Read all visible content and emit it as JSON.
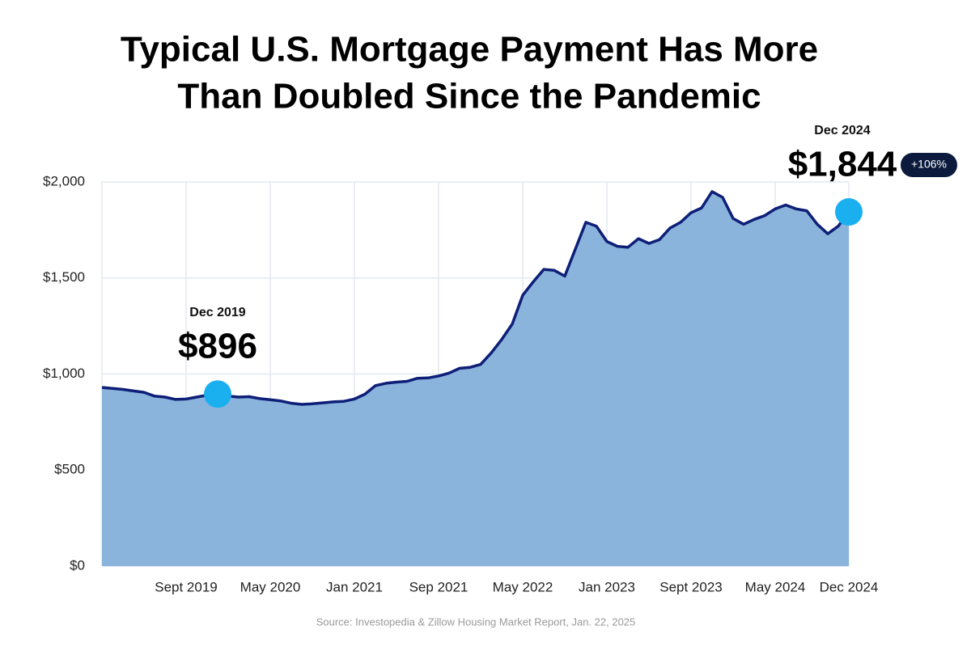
{
  "chart_data": {
    "type": "area",
    "title": "Typical U.S. Mortgage Payment Has More",
    "subtitle": "Than Doubled Since the Pandemic",
    "source": "Source: Investopedia & Zillow Housing Market Report, Jan. 22, 2025",
    "categories": [
      null,
      null,
      null,
      null,
      null,
      null,
      null,
      null,
      "Sept 2019",
      null,
      null,
      null,
      null,
      null,
      null,
      null,
      "May 2020",
      null,
      null,
      null,
      null,
      null,
      null,
      null,
      "Jan 2021",
      null,
      null,
      null,
      null,
      null,
      null,
      null,
      "Sep 2021",
      null,
      null,
      null,
      null,
      null,
      null,
      null,
      "May 2022",
      null,
      null,
      null,
      null,
      null,
      null,
      null,
      "Jan 2023",
      null,
      null,
      null,
      null,
      null,
      null,
      null,
      "Sept 2023",
      null,
      null,
      null,
      null,
      null,
      null,
      null,
      "May 2024",
      null,
      null,
      null,
      null,
      null,
      null,
      "Dec 2024"
    ],
    "series": [
      {
        "color": "#0e1f78",
        "fill": "#8ab4dc",
        "marker_color": "#1ab0f0",
        "values": [
          930,
          925,
          920,
          912,
          905,
          885,
          880,
          868,
          870,
          880,
          890,
          896,
          885,
          880,
          882,
          872,
          866,
          860,
          848,
          842,
          845,
          850,
          855,
          858,
          870,
          895,
          940,
          952,
          958,
          962,
          978,
          980,
          990,
          1005,
          1030,
          1035,
          1050,
          1110,
          1180,
          1260,
          1410,
          1480,
          1545,
          1540,
          1510,
          1650,
          1790,
          1770,
          1690,
          1665,
          1660,
          1705,
          1680,
          1700,
          1760,
          1790,
          1840,
          1865,
          1950,
          1920,
          1810,
          1780,
          1805,
          1825,
          1860,
          1880,
          1860,
          1850,
          1780,
          1730,
          1770,
          1844
        ],
        "value_labels": [
          null,
          null,
          null,
          null,
          null,
          null,
          null,
          null,
          null,
          null,
          null,
          "$896",
          null,
          null,
          null,
          null,
          null,
          null,
          null,
          null,
          null,
          null,
          null,
          null,
          null,
          null,
          null,
          null,
          null,
          null,
          null,
          null,
          null,
          null,
          null,
          null,
          null,
          null,
          null,
          null,
          null,
          null,
          null,
          null,
          null,
          null,
          null,
          null,
          null,
          null,
          null,
          null,
          null,
          null,
          null,
          null,
          null,
          null,
          null,
          null,
          null,
          null,
          null,
          null,
          null,
          null,
          null,
          null,
          null,
          null,
          null,
          "$1,844"
        ]
      }
    ],
    "annotations": [
      "Dec 2019",
      "Dec 2024"
    ],
    "change_label": "+106%",
    "ylim": [
      0,
      2000
    ],
    "yticks": [
      {
        "value": 0,
        "label": "$0"
      },
      {
        "value": 500,
        "label": "$500"
      },
      {
        "value": 1000,
        "label": "$1,000"
      },
      {
        "value": 1500,
        "label": "$1,500"
      },
      {
        "value": 2000,
        "label": "$2,000"
      }
    ],
    "grid": true
  }
}
